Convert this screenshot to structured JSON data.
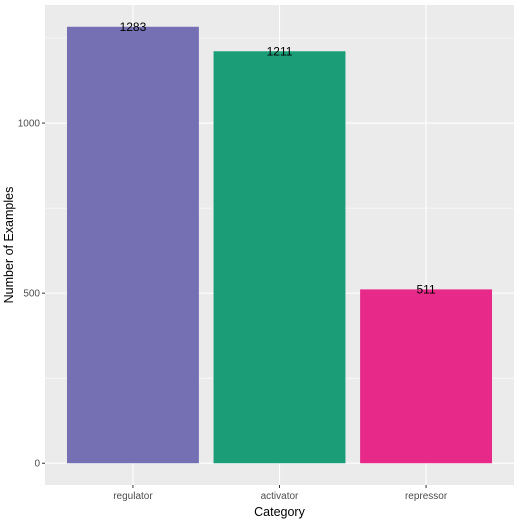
{
  "chart_data": {
    "type": "bar",
    "categories": [
      "regulator",
      "activator",
      "repressor"
    ],
    "values": [
      1283,
      1211,
      511
    ],
    "data_labels": [
      "1283",
      "1211",
      "511"
    ],
    "colors": [
      "#7570b3",
      "#1b9e77",
      "#e7298a"
    ],
    "xlabel": "Category",
    "ylabel": "Number of Examples",
    "ylim": [
      -64,
      1347
    ],
    "yticks": [
      0,
      500,
      1000
    ],
    "ytick_labels": [
      "0",
      "500",
      "1000"
    ],
    "grid": true,
    "legend": "none",
    "panel_background": "#ebebeb",
    "grid_color": "#ffffff"
  }
}
